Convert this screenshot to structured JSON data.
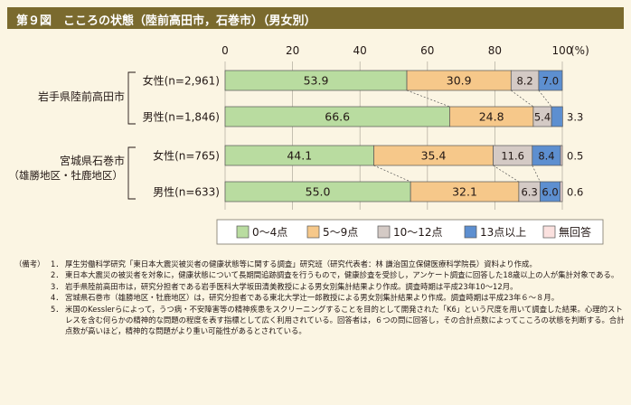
{
  "figure_title": "第９図　こころの状態（陸前高田市，石巻市）（男女別）",
  "colors": {
    "title_bg": "#7a6a2e",
    "page_bg": "#fbf5e3",
    "seg_0_4": "#b9dca0",
    "seg_5_9": "#f6c88a",
    "seg_10_12": "#d4cac5",
    "seg_13plus": "#5d8fd0",
    "seg_none": "#fbe1df"
  },
  "chart_data": {
    "type": "bar",
    "orientation": "horizontal",
    "stacked": true,
    "xlim": [
      0,
      100
    ],
    "xticks": [
      "0",
      "20",
      "40",
      "60",
      "80",
      "100"
    ],
    "xunit": "(%)",
    "grid": true,
    "legend_position": "bottom",
    "groups": [
      {
        "name": "岩手県陸前高田市",
        "name_line2": ""
      },
      {
        "name": "宮城県石巻市",
        "name_line2": "（雄勝地区・牡鹿地区）"
      }
    ],
    "categories": [
      "女性(n=2,961)",
      "男性(n=1,846)",
      "女性(n=765)",
      "男性(n=633)"
    ],
    "series": [
      {
        "name": "0～4点",
        "values": [
          53.9,
          66.6,
          44.1,
          55.0
        ],
        "labels": [
          "53.9",
          "66.6",
          "44.1",
          "55.0"
        ]
      },
      {
        "name": "5～9点",
        "values": [
          30.9,
          24.8,
          35.4,
          32.1
        ],
        "labels": [
          "30.9",
          "24.8",
          "35.4",
          "32.1"
        ]
      },
      {
        "name": "10～12点",
        "values": [
          8.2,
          5.4,
          11.6,
          6.3
        ],
        "labels": [
          "8.2",
          "5.4",
          "11.6",
          "6.3"
        ]
      },
      {
        "name": "13点以上",
        "values": [
          7.0,
          3.3,
          8.4,
          6.0
        ],
        "labels": [
          "7.0",
          "3.3",
          "8.4",
          "6.0"
        ]
      },
      {
        "name": "無回答",
        "values": [
          0.0,
          0.0,
          0.5,
          0.6
        ],
        "labels": [
          "",
          "",
          "0.5",
          "0.6"
        ]
      }
    ]
  },
  "notes": {
    "heading": "（備考）",
    "items": [
      {
        "num": "1．",
        "text": "厚生労働科学研究「東日本大震災被災者の健康状態等に関する調査」研究班（研究代表者：林 謙治国立保健医療科学院長）資料より作成。"
      },
      {
        "num": "2．",
        "text": "東日本大震災の被災者を対象に，健康状態について長期間追跡調査を行うもので，健康診査を受診し，アンケート調査に回答した18歳以上の人が集計対象である。"
      },
      {
        "num": "3．",
        "text": "岩手県陸前高田市は，研究分担者である岩手医科大学坂田清美教授による男女別集計結果より作成。調査時期は平成23年10～12月。"
      },
      {
        "num": "4．",
        "text": "宮城県石巻市（雄勝地区・牡鹿地区）は，研究分担者である東北大学辻一郎教授による男女別集計結果より作成。調査時期は平成23年６～８月。"
      },
      {
        "num": "5．",
        "text": "米国のKesslerらによって，うつ病・不安障害等の精神疾患をスクリーニングすることを目的として開発された「K6」という尺度を用いて調査した結果。心理的ストレスを含む何らかの精神的な問題の程度を表す指標として広く利用されている。回答者は，６つの問に回答し，その合計点数によってこころの状態を判断する。合計点数が高いほど，精神的な問題がより重い可能性があるとされている。"
      }
    ]
  }
}
